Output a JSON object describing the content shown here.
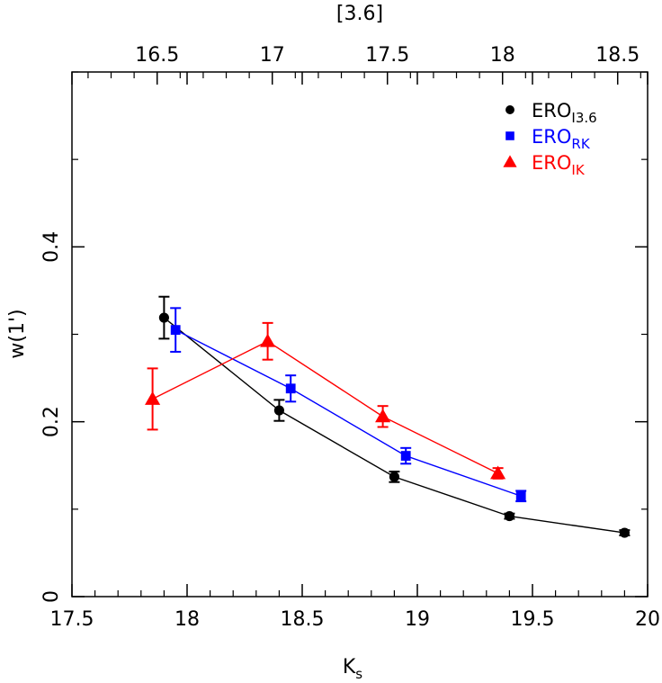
{
  "chart_data": {
    "type": "scatter",
    "xlabel": "K",
    "xlabel_sub": "s",
    "ylabel": "w(1')",
    "top_axis_label": "[3.6]",
    "xlim": [
      17.5,
      20
    ],
    "ylim": [
      0,
      0.6
    ],
    "x_ticks": [
      17.5,
      18,
      18.5,
      19,
      19.5,
      20
    ],
    "x_tick_labels": [
      "17.5",
      "18",
      "18.5",
      "19",
      "19.5",
      "20"
    ],
    "y_ticks": [
      0,
      0.2,
      0.4
    ],
    "y_tick_labels": [
      "0",
      "0.2",
      "0.4"
    ],
    "top_ticks": [
      16.5,
      17,
      17.5,
      18,
      18.5
    ],
    "top_tick_labels": [
      "16.5",
      "17",
      "17.5",
      "18",
      "18.5"
    ],
    "top_axis_offset": 1.37,
    "grid": false,
    "legend_position": "top-right",
    "series": [
      {
        "name": "ERO",
        "name_sub": "I3.6",
        "color": "#000000",
        "marker": "circle",
        "x": [
          17.9,
          18.4,
          18.9,
          19.4,
          19.9
        ],
        "y": [
          0.319,
          0.213,
          0.137,
          0.092,
          0.073
        ],
        "err": [
          0.024,
          0.012,
          0.006,
          0.003,
          0.003
        ]
      },
      {
        "name": "ERO",
        "name_sub": "RK",
        "color": "#0000ff",
        "marker": "square",
        "x": [
          17.95,
          18.45,
          18.95,
          19.45
        ],
        "y": [
          0.305,
          0.238,
          0.161,
          0.115
        ],
        "err": [
          0.025,
          0.015,
          0.009,
          0.006
        ]
      },
      {
        "name": "ERO",
        "name_sub": "IK",
        "color": "#ff0000",
        "marker": "triangle",
        "x": [
          17.85,
          18.35,
          18.85,
          19.35
        ],
        "y": [
          0.226,
          0.292,
          0.206,
          0.141
        ],
        "err": [
          0.035,
          0.021,
          0.012,
          0.006
        ]
      }
    ]
  }
}
